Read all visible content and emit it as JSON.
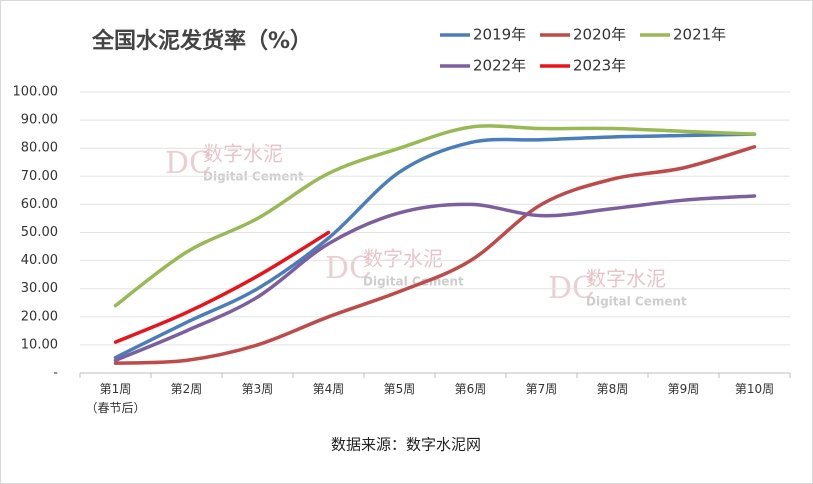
{
  "chart_data": {
    "type": "line",
    "title": "全国水泥发货率（%）",
    "categories": [
      "第1周\n（春节后）",
      "第2周",
      "第3周",
      "第4周",
      "第5周",
      "第6周",
      "第7周",
      "第8周",
      "第9周",
      "第10周"
    ],
    "series": [
      {
        "name": "2019年",
        "color": "#4a7ebb",
        "values": [
          5.5,
          18,
          30,
          48,
          71.5,
          82,
          83,
          84,
          84.5,
          85
        ]
      },
      {
        "name": "2020年",
        "color": "#be4b48",
        "values": [
          3.5,
          4.5,
          10,
          20,
          29,
          40,
          60,
          69,
          73,
          80.5
        ]
      },
      {
        "name": "2021年",
        "color": "#98b954",
        "values": [
          24,
          43,
          55,
          71,
          80,
          87.5,
          87,
          87,
          86,
          85
        ]
      },
      {
        "name": "2022年",
        "color": "#7d5fa0",
        "values": [
          4.5,
          15,
          27,
          46,
          57,
          60,
          56,
          58.5,
          61.5,
          63
        ]
      },
      {
        "name": "2023年",
        "color": "#e8141b",
        "values": [
          11,
          21.5,
          34.5,
          50,
          null,
          null,
          null,
          null,
          null,
          null
        ]
      }
    ],
    "ylim": [
      0,
      100
    ],
    "yticks": [
      {
        "value": 0,
        "label": "-"
      },
      {
        "value": 10,
        "label": "10.00"
      },
      {
        "value": 20,
        "label": "20.00"
      },
      {
        "value": 30,
        "label": "30.00"
      },
      {
        "value": 40,
        "label": "40.00"
      },
      {
        "value": 50,
        "label": "50.00"
      },
      {
        "value": 60,
        "label": "60.00"
      },
      {
        "value": 70,
        "label": "70.00"
      },
      {
        "value": 80,
        "label": "80.00"
      },
      {
        "value": 90,
        "label": "90.00"
      },
      {
        "value": 100,
        "label": "100.00"
      }
    ],
    "grid": true,
    "source": "数据来源：数字水泥网",
    "watermark": {
      "logo": "DC",
      "name": "数字水泥",
      "english": "Digital Cement"
    }
  }
}
